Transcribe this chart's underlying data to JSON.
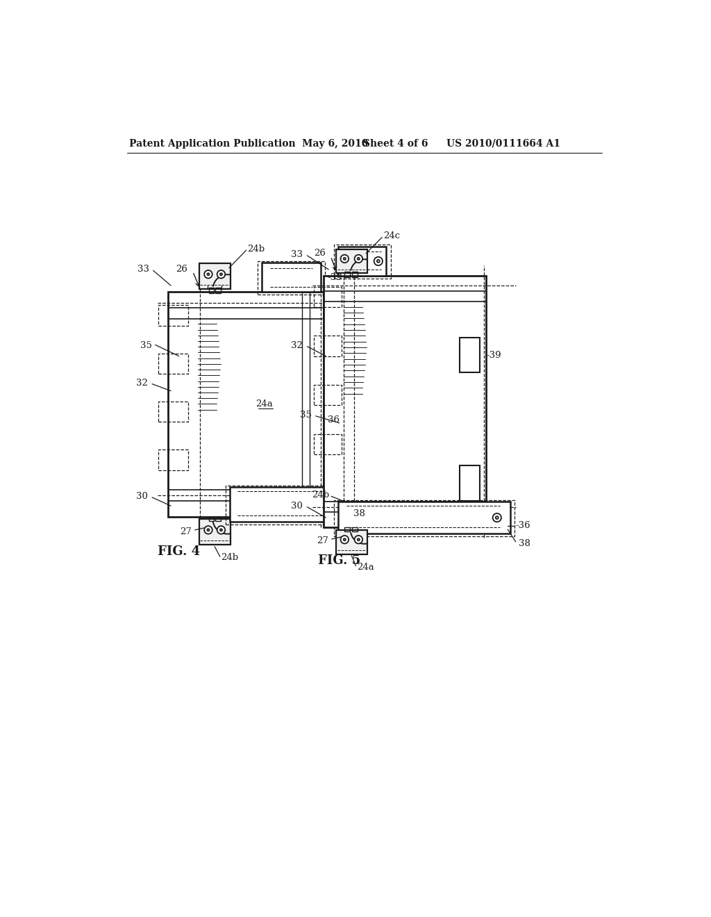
{
  "bg_color": "#ffffff",
  "header_text": "Patent Application Publication",
  "header_date": "May 6, 2010",
  "header_sheet": "Sheet 4 of 6",
  "header_patent": "US 2010/0111664 A1",
  "fig4_label": "FIG. 4",
  "fig5_label": "FIG. 5",
  "line_color": "#1a1a1a"
}
